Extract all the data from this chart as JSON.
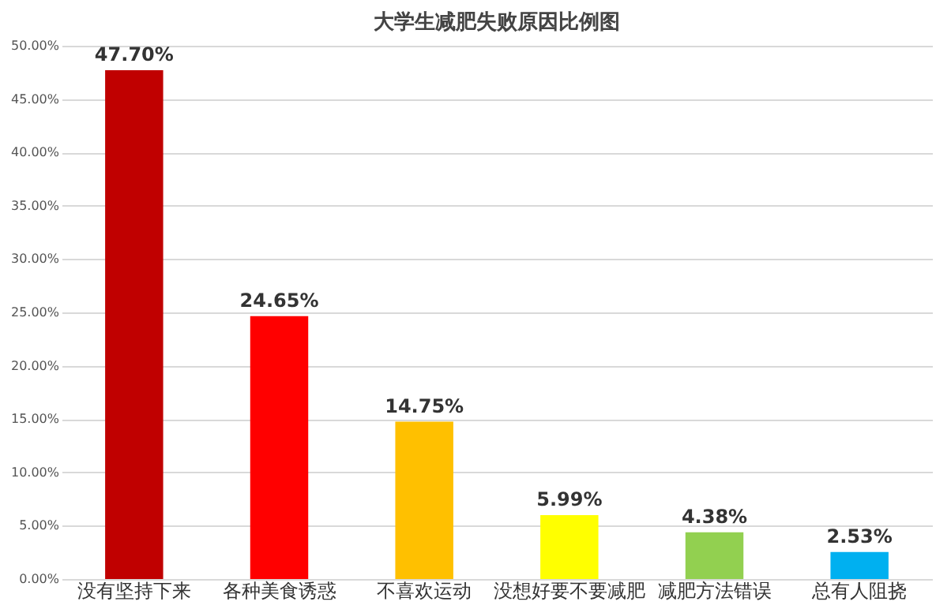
{
  "chart_data": {
    "type": "bar",
    "title": "大学生减肥失败原因比例图",
    "categories": [
      "没有坚持下来",
      "各种美食诱惑",
      "不喜欢运动",
      "没想好要不要减肥",
      "减肥方法错误",
      "总有人阻挠"
    ],
    "values": [
      47.7,
      24.65,
      14.75,
      5.99,
      4.38,
      2.53
    ],
    "value_labels": [
      "47.70%",
      "24.65%",
      "14.75%",
      "5.99%",
      "4.38%",
      "2.53%"
    ],
    "colors": [
      "#c00000",
      "#ff0000",
      "#ffc000",
      "#ffff00",
      "#92d050",
      "#00b0f0"
    ],
    "ylim": [
      0,
      50
    ],
    "yticks": [
      {
        "value": 0,
        "label": "0.00%"
      },
      {
        "value": 5,
        "label": "5.00%"
      },
      {
        "value": 10,
        "label": "10.00%"
      },
      {
        "value": 15,
        "label": "15.00%"
      },
      {
        "value": 20,
        "label": "20.00%"
      },
      {
        "value": 25,
        "label": "25.00%"
      },
      {
        "value": 30,
        "label": "30.00%"
      },
      {
        "value": 35,
        "label": "35.00%"
      },
      {
        "value": 40,
        "label": "40.00%"
      },
      {
        "value": 45,
        "label": "45.00%"
      },
      {
        "value": 50,
        "label": "50.00%"
      }
    ],
    "grid": "y",
    "legend": false
  }
}
